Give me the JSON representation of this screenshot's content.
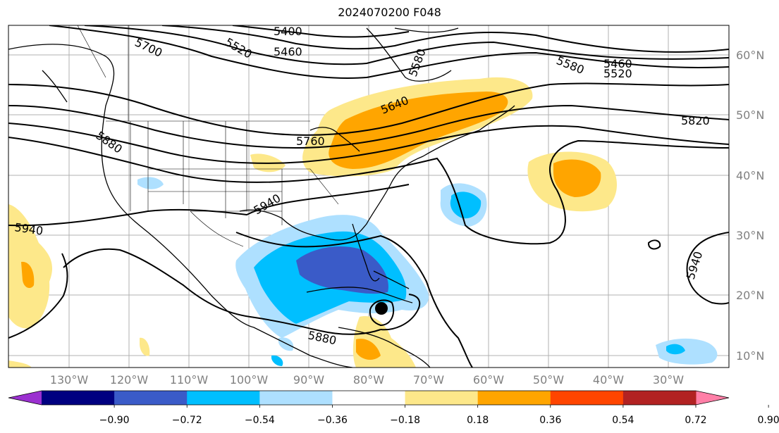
{
  "title": "2024070200 F048",
  "lon_labels": [
    "130°W",
    "120°W",
    "110°W",
    "100°W",
    "90°W",
    "80°W",
    "70°W",
    "60°W",
    "50°W",
    "40°W",
    "30°W"
  ],
  "lat_labels": [
    "60°N",
    "50°N",
    "40°N",
    "30°N",
    "20°N",
    "10°N"
  ],
  "contour_labels": [
    "5400",
    "5460",
    "5520",
    "5700",
    "5580",
    "5460",
    "5520",
    "5580",
    "5640",
    "5760",
    "5820",
    "5880",
    "5940",
    "5940",
    "5940",
    "5880"
  ],
  "colorbar": {
    "ticks": [
      "−0.90",
      "−0.72",
      "−0.54",
      "−0.36",
      "−0.18",
      "0.18",
      "0.36",
      "0.54",
      "0.72",
      "0.90"
    ],
    "colors": [
      "#9b30d0",
      "#000080",
      "#3a5bc8",
      "#00bfff",
      "#aee0ff",
      "#ffffff",
      "#fde88a",
      "#ffa500",
      "#ff4500",
      "#b22222",
      "#ff7fa7"
    ]
  },
  "marker": "storm-center"
}
